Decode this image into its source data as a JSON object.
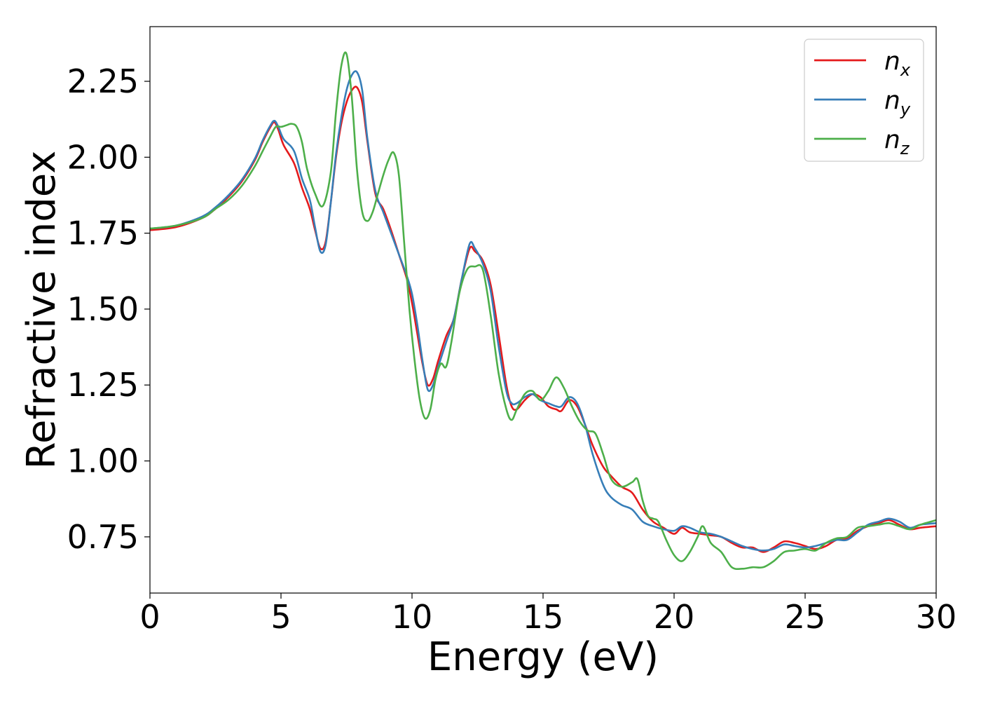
{
  "chart_data": {
    "type": "line",
    "xlabel": "Energy (eV)",
    "ylabel": "Refractive index",
    "xlim": [
      0,
      30
    ],
    "ylim": [
      0.565,
      2.43
    ],
    "xticks": [
      0,
      5,
      10,
      15,
      20,
      25,
      30
    ],
    "xtick_labels": [
      "0",
      "5",
      "10",
      "15",
      "20",
      "25",
      "30"
    ],
    "yticks": [
      0.75,
      1.0,
      1.25,
      1.5,
      1.75,
      2.0,
      2.25
    ],
    "ytick_labels": [
      "0.75",
      "1.00",
      "1.25",
      "1.50",
      "1.75",
      "2.00",
      "2.25"
    ],
    "grid": false,
    "legend_position": "top-right",
    "series": [
      {
        "name": "n_x",
        "legend_base": "n",
        "legend_sub": "x",
        "color": "#e41a1c",
        "x": [
          0,
          1,
          2,
          2.5,
          3,
          3.5,
          4,
          4.3,
          4.6,
          4.75,
          4.9,
          5.1,
          5.5,
          5.8,
          6.1,
          6.3,
          6.5,
          6.7,
          6.9,
          7.1,
          7.3,
          7.5,
          7.7,
          7.9,
          8.1,
          8.3,
          8.6,
          8.9,
          9.2,
          9.5,
          9.8,
          10.0,
          10.2,
          10.4,
          10.6,
          10.8,
          11.0,
          11.3,
          11.6,
          11.9,
          12.2,
          12.4,
          12.7,
          13.0,
          13.3,
          13.6,
          13.8,
          14.0,
          14.3,
          14.6,
          14.9,
          15.2,
          15.5,
          15.7,
          16.0,
          16.3,
          16.6,
          16.9,
          17.3,
          17.6,
          18.0,
          18.4,
          18.8,
          19.2,
          19.6,
          20.0,
          20.3,
          20.6,
          21.0,
          21.4,
          21.8,
          22.2,
          22.6,
          23.0,
          23.4,
          23.8,
          24.2,
          24.6,
          25.0,
          25.4,
          25.8,
          26.2,
          26.6,
          27.0,
          27.4,
          27.8,
          28.2,
          28.6,
          29.0,
          29.4,
          30.0
        ],
        "y": [
          1.76,
          1.77,
          1.8,
          1.83,
          1.87,
          1.92,
          1.99,
          2.05,
          2.1,
          2.115,
          2.09,
          2.04,
          1.98,
          1.9,
          1.83,
          1.76,
          1.7,
          1.72,
          1.85,
          2.0,
          2.11,
          2.18,
          2.22,
          2.23,
          2.18,
          2.05,
          1.88,
          1.83,
          1.76,
          1.68,
          1.6,
          1.52,
          1.42,
          1.32,
          1.25,
          1.27,
          1.33,
          1.41,
          1.47,
          1.6,
          1.7,
          1.69,
          1.66,
          1.58,
          1.42,
          1.25,
          1.18,
          1.17,
          1.2,
          1.22,
          1.21,
          1.18,
          1.17,
          1.165,
          1.2,
          1.18,
          1.12,
          1.05,
          0.98,
          0.95,
          0.915,
          0.895,
          0.84,
          0.8,
          0.78,
          0.76,
          0.78,
          0.765,
          0.76,
          0.755,
          0.75,
          0.73,
          0.715,
          0.715,
          0.7,
          0.715,
          0.735,
          0.73,
          0.72,
          0.71,
          0.72,
          0.74,
          0.745,
          0.77,
          0.785,
          0.795,
          0.805,
          0.79,
          0.775,
          0.78,
          0.785
        ]
      },
      {
        "name": "n_y",
        "legend_base": "n",
        "legend_sub": "y",
        "color": "#377eb8",
        "x": [
          0,
          1,
          2,
          2.5,
          3,
          3.5,
          4,
          4.3,
          4.6,
          4.75,
          4.9,
          5.1,
          5.5,
          5.8,
          6.1,
          6.3,
          6.5,
          6.7,
          6.9,
          7.1,
          7.3,
          7.5,
          7.7,
          7.9,
          8.1,
          8.3,
          8.6,
          8.9,
          9.2,
          9.5,
          9.8,
          10.0,
          10.2,
          10.4,
          10.6,
          10.8,
          11.0,
          11.3,
          11.6,
          11.9,
          12.2,
          12.4,
          12.7,
          13.0,
          13.3,
          13.6,
          13.8,
          14.0,
          14.3,
          14.6,
          14.9,
          15.2,
          15.5,
          15.7,
          16.0,
          16.3,
          16.6,
          16.9,
          17.3,
          17.6,
          18.0,
          18.4,
          18.8,
          19.2,
          19.6,
          20.0,
          20.3,
          20.6,
          21.0,
          21.4,
          21.8,
          22.2,
          22.6,
          23.0,
          23.4,
          23.8,
          24.2,
          24.6,
          25.0,
          25.4,
          25.8,
          26.2,
          26.6,
          27.0,
          27.4,
          27.8,
          28.2,
          28.6,
          29.0,
          29.4,
          30.0
        ],
        "y": [
          1.765,
          1.775,
          1.805,
          1.835,
          1.875,
          1.925,
          1.995,
          2.055,
          2.105,
          2.12,
          2.1,
          2.06,
          2.02,
          1.93,
          1.86,
          1.77,
          1.69,
          1.71,
          1.85,
          2.01,
          2.13,
          2.22,
          2.27,
          2.28,
          2.22,
          2.06,
          1.89,
          1.82,
          1.75,
          1.68,
          1.61,
          1.55,
          1.45,
          1.33,
          1.235,
          1.25,
          1.31,
          1.39,
          1.47,
          1.6,
          1.715,
          1.7,
          1.65,
          1.56,
          1.38,
          1.23,
          1.19,
          1.19,
          1.21,
          1.22,
          1.2,
          1.19,
          1.18,
          1.18,
          1.21,
          1.19,
          1.12,
          1.02,
          0.92,
          0.88,
          0.855,
          0.84,
          0.8,
          0.785,
          0.775,
          0.77,
          0.785,
          0.78,
          0.765,
          0.76,
          0.75,
          0.735,
          0.72,
          0.71,
          0.705,
          0.71,
          0.725,
          0.72,
          0.715,
          0.72,
          0.73,
          0.74,
          0.74,
          0.765,
          0.79,
          0.8,
          0.81,
          0.8,
          0.78,
          0.79,
          0.795
        ]
      },
      {
        "name": "n_z",
        "legend_base": "n",
        "legend_sub": "z",
        "color": "#4daf4a",
        "x": [
          0,
          1,
          2,
          2.5,
          3,
          3.5,
          4,
          4.3,
          4.6,
          4.8,
          5.0,
          5.2,
          5.4,
          5.6,
          5.8,
          6.0,
          6.3,
          6.6,
          6.9,
          7.1,
          7.3,
          7.5,
          7.7,
          7.9,
          8.1,
          8.3,
          8.5,
          8.7,
          8.9,
          9.1,
          9.3,
          9.5,
          9.7,
          9.9,
          10.1,
          10.3,
          10.5,
          10.7,
          10.9,
          11.1,
          11.3,
          11.5,
          11.8,
          12.1,
          12.4,
          12.7,
          13.0,
          13.3,
          13.6,
          13.8,
          14.0,
          14.3,
          14.6,
          14.9,
          15.2,
          15.5,
          15.8,
          16.1,
          16.4,
          16.7,
          17.0,
          17.3,
          17.6,
          18.0,
          18.4,
          18.6,
          18.8,
          19.0,
          19.2,
          19.4,
          19.7,
          20.0,
          20.3,
          20.6,
          20.9,
          21.1,
          21.4,
          21.8,
          22.2,
          22.6,
          23.0,
          23.4,
          23.8,
          24.2,
          24.6,
          25.0,
          25.4,
          25.8,
          26.2,
          26.6,
          27.0,
          27.4,
          27.8,
          28.2,
          28.6,
          29.0,
          29.4,
          30.0
        ],
        "y": [
          1.765,
          1.775,
          1.8,
          1.83,
          1.86,
          1.905,
          1.97,
          2.02,
          2.07,
          2.1,
          2.1,
          2.105,
          2.11,
          2.1,
          2.05,
          1.96,
          1.88,
          1.84,
          1.95,
          2.15,
          2.3,
          2.34,
          2.2,
          1.96,
          1.82,
          1.79,
          1.82,
          1.88,
          1.94,
          1.99,
          2.015,
          1.94,
          1.72,
          1.5,
          1.33,
          1.2,
          1.14,
          1.17,
          1.27,
          1.32,
          1.31,
          1.39,
          1.55,
          1.63,
          1.64,
          1.63,
          1.48,
          1.29,
          1.17,
          1.135,
          1.17,
          1.22,
          1.23,
          1.2,
          1.23,
          1.275,
          1.24,
          1.18,
          1.13,
          1.1,
          1.09,
          1.02,
          0.94,
          0.915,
          0.93,
          0.94,
          0.87,
          0.82,
          0.81,
          0.8,
          0.74,
          0.69,
          0.67,
          0.7,
          0.75,
          0.785,
          0.73,
          0.7,
          0.65,
          0.645,
          0.65,
          0.65,
          0.67,
          0.7,
          0.705,
          0.71,
          0.705,
          0.73,
          0.745,
          0.75,
          0.78,
          0.785,
          0.79,
          0.795,
          0.785,
          0.775,
          0.79,
          0.805
        ]
      }
    ]
  }
}
